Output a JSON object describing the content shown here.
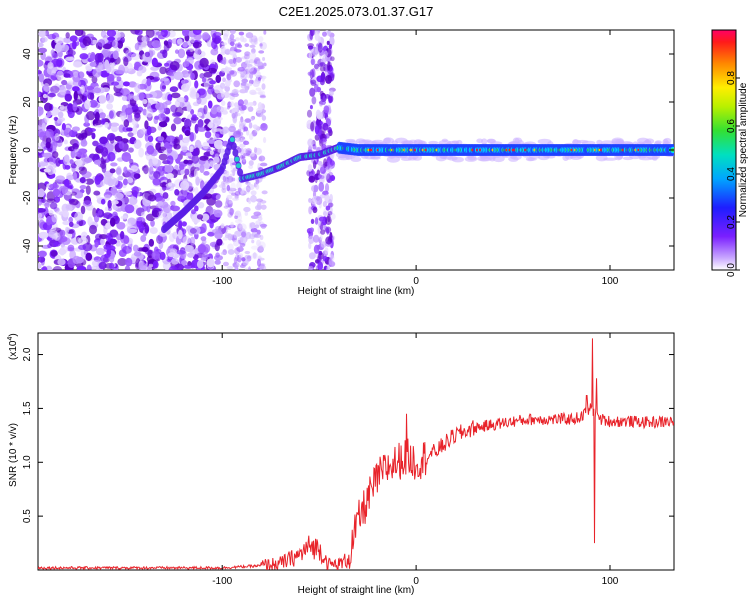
{
  "title": "C2E1.2025.073.01.37.G17",
  "chart_data": [
    {
      "type": "heatmap",
      "xlabel": "Height of straight line (km)",
      "ylabel": "Frequency (Hz)",
      "xlim": [
        -195,
        133
      ],
      "ylim": [
        -50,
        50
      ],
      "xticks": [
        -100,
        0,
        100
      ],
      "yticks": [
        -40,
        -20,
        0,
        20,
        40
      ],
      "colorbar": {
        "label": "Normalized spectral amplitude",
        "range": [
          0,
          1
        ],
        "ticks": [
          0.0,
          0.2,
          0.4,
          0.6,
          0.8
        ]
      },
      "signal_track": [
        {
          "x": -130,
          "y": -33
        },
        {
          "x": -120,
          "y": -26
        },
        {
          "x": -110,
          "y": -18
        },
        {
          "x": -100,
          "y": -8
        },
        {
          "x": -95,
          "y": 5
        },
        {
          "x": -90,
          "y": -12
        },
        {
          "x": -80,
          "y": -10
        },
        {
          "x": -70,
          "y": -7
        },
        {
          "x": -60,
          "y": -3
        },
        {
          "x": -50,
          "y": -2
        },
        {
          "x": -40,
          "y": 1
        },
        {
          "x": -30,
          "y": 0
        },
        {
          "x": 0,
          "y": 0
        },
        {
          "x": 50,
          "y": 0
        },
        {
          "x": 100,
          "y": 0
        },
        {
          "x": 133,
          "y": 0
        }
      ]
    },
    {
      "type": "line",
      "xlabel": "Height of straight line (km)",
      "ylabel": "SNR (10 * v/v)",
      "yscale_label": "(x10",
      "yscale_exp": "4",
      "yscale_close": ")",
      "xlim": [
        -195,
        133
      ],
      "ylim": [
        0.0,
        2.2
      ],
      "xticks": [
        -100,
        0,
        100
      ],
      "yticks": [
        0.5,
        1.0,
        1.5,
        2.0
      ],
      "series": [
        {
          "color": "#e8232a",
          "points": [
            [
              -195,
              0.02
            ],
            [
              -150,
              0.02
            ],
            [
              -100,
              0.02
            ],
            [
              -80,
              0.04
            ],
            [
              -70,
              0.06
            ],
            [
              -60,
              0.14
            ],
            [
              -55,
              0.22
            ],
            [
              -50,
              0.2
            ],
            [
              -45,
              0.05
            ],
            [
              -40,
              0.05
            ],
            [
              -35,
              0.1
            ],
            [
              -30,
              0.45
            ],
            [
              -25,
              0.65
            ],
            [
              -20,
              0.85
            ],
            [
              -15,
              0.95
            ],
            [
              -10,
              1.0
            ],
            [
              -5,
              1.05
            ],
            [
              0,
              1.0
            ],
            [
              10,
              1.1
            ],
            [
              20,
              1.25
            ],
            [
              30,
              1.32
            ],
            [
              40,
              1.35
            ],
            [
              50,
              1.38
            ],
            [
              60,
              1.4
            ],
            [
              70,
              1.4
            ],
            [
              80,
              1.4
            ],
            [
              85,
              1.42
            ],
            [
              90,
              1.5
            ],
            [
              95,
              1.4
            ],
            [
              100,
              1.38
            ],
            [
              110,
              1.38
            ],
            [
              120,
              1.37
            ],
            [
              133,
              1.38
            ]
          ],
          "spikes": [
            {
              "x": -5,
              "y": 1.45
            },
            {
              "x": 91,
              "y": 2.15
            },
            {
              "x": 92,
              "y": 0.25
            },
            {
              "x": 93,
              "y": 1.78
            },
            {
              "x": 88,
              "y": 1.62
            }
          ]
        }
      ]
    }
  ]
}
